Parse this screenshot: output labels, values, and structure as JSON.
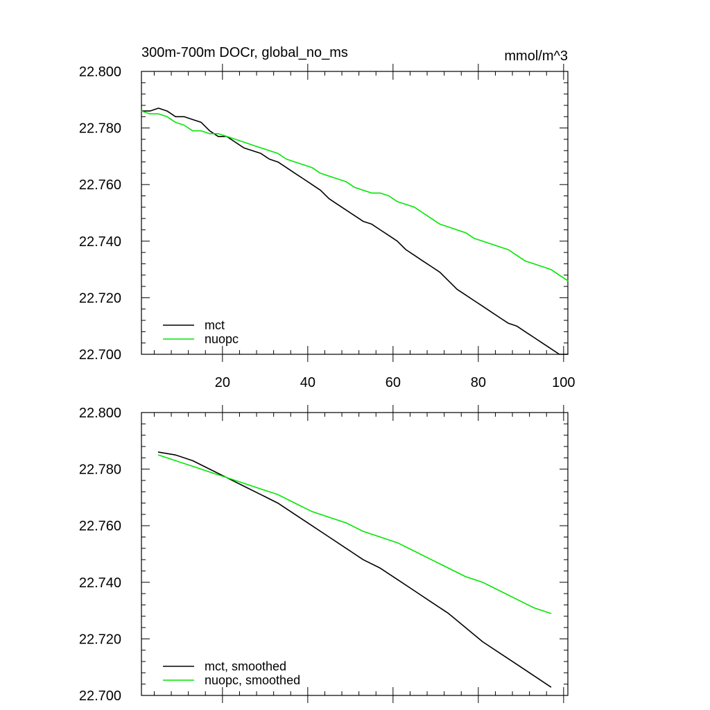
{
  "page": {
    "title": "300m-700m DOCr, global_no_ms",
    "units": "mmol/m^3"
  },
  "chart_data": [
    {
      "type": "line",
      "title": "300m-700m DOCr, global_no_ms",
      "units_label": "mmol/m^3",
      "xlabel": "",
      "ylabel": "",
      "xlim": [
        1,
        101
      ],
      "ylim": [
        22.7,
        22.8
      ],
      "x_major_ticks": [
        20,
        40,
        60,
        80,
        100
      ],
      "x_tick_labels": [
        "20",
        "40",
        "60",
        "80",
        "100"
      ],
      "y_major_ticks": [
        22.7,
        22.72,
        22.74,
        22.76,
        22.78,
        22.8
      ],
      "y_tick_labels": [
        "22.700",
        "22.720",
        "22.740",
        "22.760",
        "22.780",
        "22.800"
      ],
      "legend_position": "bottom-left",
      "series": [
        {
          "name": "mct",
          "color": "#000000",
          "x": [
            1,
            3,
            5,
            7,
            9,
            11,
            13,
            15,
            17,
            19,
            21,
            23,
            25,
            27,
            29,
            31,
            33,
            35,
            37,
            39,
            41,
            43,
            45,
            47,
            49,
            51,
            53,
            55,
            57,
            59,
            61,
            63,
            65,
            67,
            69,
            71,
            73,
            75,
            77,
            79,
            81,
            83,
            85,
            87,
            89,
            91,
            93,
            95,
            97,
            99,
            101
          ],
          "values": [
            22.786,
            22.786,
            22.787,
            22.786,
            22.784,
            22.784,
            22.783,
            22.782,
            22.779,
            22.777,
            22.777,
            22.775,
            22.773,
            22.772,
            22.771,
            22.769,
            22.768,
            22.766,
            22.764,
            22.762,
            22.76,
            22.758,
            22.755,
            22.753,
            22.751,
            22.749,
            22.747,
            22.746,
            22.744,
            22.742,
            22.74,
            22.737,
            22.735,
            22.733,
            22.731,
            22.729,
            22.726,
            22.723,
            22.721,
            22.719,
            22.717,
            22.715,
            22.713,
            22.711,
            22.71,
            22.708,
            22.706,
            22.704,
            22.702,
            22.7,
            22.7
          ]
        },
        {
          "name": "nuopc",
          "color": "#00e600",
          "x": [
            1,
            3,
            5,
            7,
            9,
            11,
            13,
            15,
            17,
            19,
            21,
            23,
            25,
            27,
            29,
            31,
            33,
            35,
            37,
            39,
            41,
            43,
            45,
            47,
            49,
            51,
            53,
            55,
            57,
            59,
            61,
            63,
            65,
            67,
            69,
            71,
            73,
            75,
            77,
            79,
            81,
            83,
            85,
            87,
            89,
            91,
            93,
            95,
            97,
            99,
            101
          ],
          "values": [
            22.786,
            22.785,
            22.785,
            22.784,
            22.782,
            22.781,
            22.779,
            22.779,
            22.778,
            22.778,
            22.777,
            22.776,
            22.775,
            22.774,
            22.773,
            22.772,
            22.771,
            22.769,
            22.768,
            22.767,
            22.766,
            22.764,
            22.763,
            22.762,
            22.761,
            22.759,
            22.758,
            22.757,
            22.757,
            22.756,
            22.754,
            22.753,
            22.752,
            22.75,
            22.748,
            22.746,
            22.745,
            22.744,
            22.743,
            22.741,
            22.74,
            22.739,
            22.738,
            22.737,
            22.735,
            22.733,
            22.732,
            22.731,
            22.73,
            22.728,
            22.726
          ]
        }
      ]
    },
    {
      "type": "line",
      "title": "",
      "xlabel": "",
      "ylabel": "",
      "xlim": [
        1,
        101
      ],
      "ylim": [
        22.7,
        22.8
      ],
      "x_major_ticks": [
        20,
        40,
        60,
        80,
        100
      ],
      "x_tick_labels": [],
      "y_major_ticks": [
        22.7,
        22.72,
        22.74,
        22.76,
        22.78,
        22.8
      ],
      "y_tick_labels": [
        "22.700",
        "22.720",
        "22.740",
        "22.760",
        "22.780",
        "22.800"
      ],
      "legend_position": "bottom-left",
      "series": [
        {
          "name": "mct, smoothed",
          "color": "#000000",
          "x": [
            5,
            9,
            13,
            17,
            21,
            25,
            29,
            33,
            37,
            41,
            45,
            49,
            53,
            57,
            61,
            65,
            69,
            73,
            77,
            81,
            85,
            89,
            93,
            97
          ],
          "values": [
            22.786,
            22.785,
            22.783,
            22.78,
            22.777,
            22.774,
            22.771,
            22.768,
            22.764,
            22.76,
            22.756,
            22.752,
            22.748,
            22.745,
            22.741,
            22.737,
            22.733,
            22.729,
            22.724,
            22.719,
            22.715,
            22.711,
            22.707,
            22.703
          ]
        },
        {
          "name": "nuopc, smoothed",
          "color": "#00e600",
          "x": [
            5,
            9,
            13,
            17,
            21,
            25,
            29,
            33,
            37,
            41,
            45,
            49,
            53,
            57,
            61,
            65,
            69,
            73,
            77,
            81,
            85,
            89,
            93,
            97
          ],
          "values": [
            22.785,
            22.783,
            22.781,
            22.779,
            22.777,
            22.775,
            22.773,
            22.771,
            22.768,
            22.765,
            22.763,
            22.761,
            22.758,
            22.756,
            22.754,
            22.751,
            22.748,
            22.745,
            22.742,
            22.74,
            22.737,
            22.734,
            22.731,
            22.729
          ]
        }
      ]
    }
  ]
}
